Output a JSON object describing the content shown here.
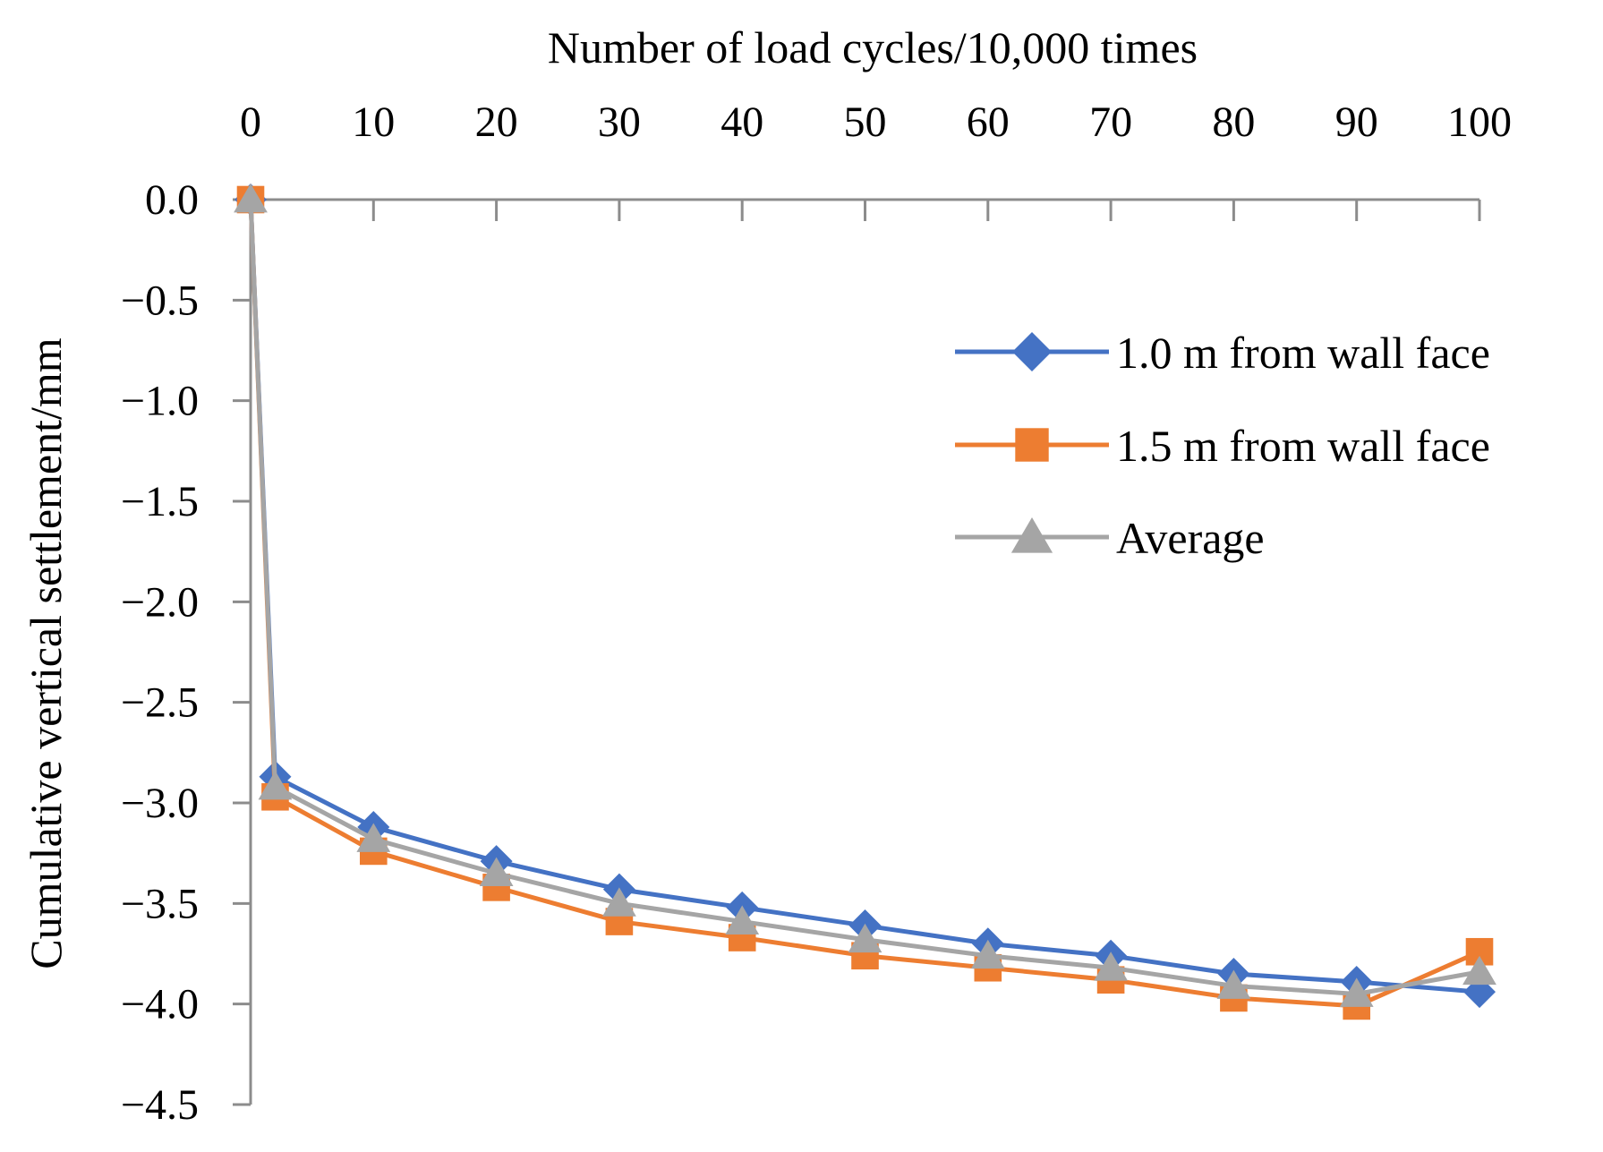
{
  "chart_data": {
    "type": "line",
    "title": "",
    "xlabel": "Number of load cycles/10,000 times",
    "ylabel": "Cumulative vertical settlement/mm",
    "x_axis_position": "top",
    "xlim": [
      0,
      100
    ],
    "ylim": [
      -4.5,
      0.0
    ],
    "x_ticks": [
      "0",
      "10",
      "20",
      "30",
      "40",
      "50",
      "60",
      "70",
      "80",
      "90",
      "100"
    ],
    "y_ticks": [
      "0.0",
      "−0.5",
      "−1.0",
      "−1.5",
      "−2.0",
      "−2.5",
      "−3.0",
      "−3.5",
      "−4.0",
      "−4.5"
    ],
    "grid": false,
    "legend_position": "right",
    "x": [
      0,
      2,
      10,
      20,
      30,
      40,
      50,
      60,
      70,
      80,
      90,
      100
    ],
    "series": [
      {
        "name": "1.0 m from wall face",
        "color": "#4472C4",
        "marker": "diamond",
        "values": [
          0.0,
          -2.87,
          -3.12,
          -3.29,
          -3.43,
          -3.52,
          -3.61,
          -3.7,
          -3.76,
          -3.85,
          -3.89,
          -3.94
        ]
      },
      {
        "name": "1.5 m from wall face",
        "color": "#ED7D31",
        "marker": "square",
        "values": [
          0.0,
          -2.97,
          -3.24,
          -3.42,
          -3.59,
          -3.67,
          -3.76,
          -3.82,
          -3.88,
          -3.97,
          -4.01,
          -3.74
        ]
      },
      {
        "name": "Average",
        "color": "#A5A5A5",
        "marker": "triangle",
        "values": [
          0.0,
          -2.92,
          -3.18,
          -3.35,
          -3.5,
          -3.59,
          -3.68,
          -3.76,
          -3.82,
          -3.91,
          -3.95,
          -3.84
        ]
      }
    ]
  }
}
